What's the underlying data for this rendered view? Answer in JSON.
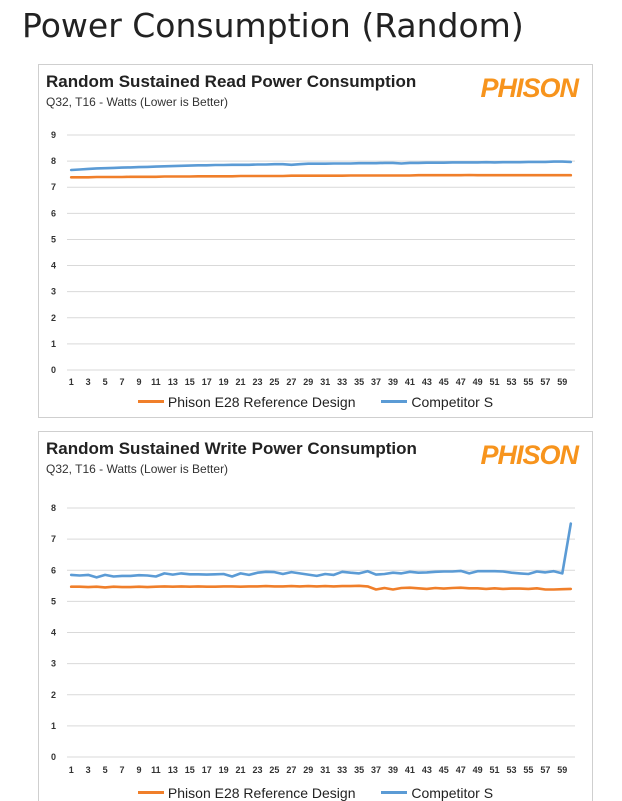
{
  "page": {
    "title": "Power Consumption (Random)"
  },
  "colors": {
    "phison": "#f07f2a",
    "competitor": "#5b9bd5",
    "logo": "#f7941d",
    "grid": "#d9d9d9"
  },
  "logo_text": "PHISON",
  "chart_data": [
    {
      "type": "line",
      "title": "Random Sustained Read Power Consumption",
      "subtitle": "Q32, T16 - Watts (Lower is Better)",
      "xlabel": "",
      "ylabel": "",
      "ylim": [
        0,
        9
      ],
      "yticks": [
        "0",
        "1",
        "2",
        "3",
        "4",
        "5",
        "6",
        "7",
        "8",
        "9"
      ],
      "grid": "horizontal",
      "legend": "bottom",
      "x_tick_labels": [
        "1",
        "3",
        "5",
        "7",
        "9",
        "11",
        "13",
        "15",
        "17",
        "19",
        "21",
        "23",
        "25",
        "27",
        "29",
        "31",
        "33",
        "35",
        "37",
        "39",
        "41",
        "43",
        "45",
        "47",
        "49",
        "51",
        "53",
        "55",
        "57",
        "59"
      ],
      "x": [
        1,
        2,
        3,
        4,
        5,
        6,
        7,
        8,
        9,
        10,
        11,
        12,
        13,
        14,
        15,
        16,
        17,
        18,
        19,
        20,
        21,
        22,
        23,
        24,
        25,
        26,
        27,
        28,
        29,
        30,
        31,
        32,
        33,
        34,
        35,
        36,
        37,
        38,
        39,
        40,
        41,
        42,
        43,
        44,
        45,
        46,
        47,
        48,
        49,
        50,
        51,
        52,
        53,
        54,
        55,
        56,
        57,
        58,
        59,
        60
      ],
      "series": [
        {
          "name": "Phison E28 Reference Design",
          "values": [
            7.38,
            7.38,
            7.38,
            7.39,
            7.39,
            7.39,
            7.39,
            7.4,
            7.4,
            7.4,
            7.4,
            7.41,
            7.41,
            7.41,
            7.41,
            7.42,
            7.42,
            7.42,
            7.42,
            7.42,
            7.43,
            7.43,
            7.43,
            7.43,
            7.43,
            7.43,
            7.44,
            7.44,
            7.44,
            7.44,
            7.44,
            7.44,
            7.44,
            7.45,
            7.45,
            7.45,
            7.45,
            7.45,
            7.45,
            7.45,
            7.45,
            7.46,
            7.46,
            7.46,
            7.46,
            7.46,
            7.46,
            7.47,
            7.46,
            7.46,
            7.46,
            7.46,
            7.46,
            7.46,
            7.46,
            7.46,
            7.46,
            7.46,
            7.46,
            7.46
          ]
        },
        {
          "name": "Competitor S",
          "values": [
            7.66,
            7.68,
            7.7,
            7.72,
            7.73,
            7.74,
            7.75,
            7.76,
            7.77,
            7.78,
            7.79,
            7.8,
            7.81,
            7.82,
            7.83,
            7.84,
            7.84,
            7.85,
            7.85,
            7.86,
            7.86,
            7.86,
            7.87,
            7.87,
            7.88,
            7.88,
            7.86,
            7.88,
            7.9,
            7.9,
            7.9,
            7.91,
            7.91,
            7.91,
            7.92,
            7.92,
            7.92,
            7.93,
            7.93,
            7.91,
            7.93,
            7.93,
            7.94,
            7.94,
            7.94,
            7.95,
            7.95,
            7.95,
            7.95,
            7.96,
            7.95,
            7.96,
            7.96,
            7.96,
            7.97,
            7.97,
            7.97,
            7.98,
            7.98,
            7.97
          ]
        }
      ]
    },
    {
      "type": "line",
      "title": "Random Sustained Write Power Consumption",
      "subtitle": "Q32, T16 - Watts (Lower is Better)",
      "xlabel": "",
      "ylabel": "",
      "ylim": [
        0,
        8
      ],
      "yticks": [
        "0",
        "1",
        "2",
        "3",
        "4",
        "5",
        "6",
        "7",
        "8"
      ],
      "grid": "horizontal",
      "legend": "bottom",
      "x_tick_labels": [
        "1",
        "3",
        "5",
        "7",
        "9",
        "11",
        "13",
        "15",
        "17",
        "19",
        "21",
        "23",
        "25",
        "27",
        "29",
        "31",
        "33",
        "35",
        "37",
        "39",
        "41",
        "43",
        "45",
        "47",
        "49",
        "51",
        "53",
        "55",
        "57",
        "59"
      ],
      "x": [
        1,
        2,
        3,
        4,
        5,
        6,
        7,
        8,
        9,
        10,
        11,
        12,
        13,
        14,
        15,
        16,
        17,
        18,
        19,
        20,
        21,
        22,
        23,
        24,
        25,
        26,
        27,
        28,
        29,
        30,
        31,
        32,
        33,
        34,
        35,
        36,
        37,
        38,
        39,
        40,
        41,
        42,
        43,
        44,
        45,
        46,
        47,
        48,
        49,
        50,
        51,
        52,
        53,
        54,
        55,
        56,
        57,
        58,
        59,
        60
      ],
      "series": [
        {
          "name": "Phison E28 Reference Design",
          "values": [
            5.47,
            5.47,
            5.46,
            5.47,
            5.45,
            5.47,
            5.46,
            5.46,
            5.47,
            5.46,
            5.47,
            5.48,
            5.47,
            5.48,
            5.47,
            5.48,
            5.47,
            5.47,
            5.48,
            5.48,
            5.47,
            5.48,
            5.48,
            5.49,
            5.48,
            5.48,
            5.49,
            5.48,
            5.49,
            5.48,
            5.49,
            5.48,
            5.49,
            5.49,
            5.5,
            5.48,
            5.38,
            5.43,
            5.38,
            5.43,
            5.44,
            5.42,
            5.4,
            5.43,
            5.41,
            5.43,
            5.44,
            5.42,
            5.42,
            5.4,
            5.42,
            5.4,
            5.41,
            5.41,
            5.4,
            5.42,
            5.38,
            5.38,
            5.39,
            5.4
          ]
        },
        {
          "name": "Competitor S",
          "values": [
            5.85,
            5.83,
            5.85,
            5.77,
            5.85,
            5.8,
            5.82,
            5.82,
            5.84,
            5.83,
            5.8,
            5.9,
            5.86,
            5.9,
            5.87,
            5.87,
            5.86,
            5.87,
            5.88,
            5.8,
            5.9,
            5.85,
            5.92,
            5.95,
            5.94,
            5.88,
            5.94,
            5.9,
            5.86,
            5.82,
            5.88,
            5.85,
            5.95,
            5.92,
            5.9,
            5.97,
            5.86,
            5.88,
            5.92,
            5.9,
            5.95,
            5.92,
            5.93,
            5.95,
            5.96,
            5.96,
            5.98,
            5.9,
            5.97,
            5.97,
            5.97,
            5.96,
            5.92,
            5.9,
            5.88,
            5.96,
            5.93,
            5.97,
            5.9,
            7.5
          ]
        }
      ]
    }
  ]
}
